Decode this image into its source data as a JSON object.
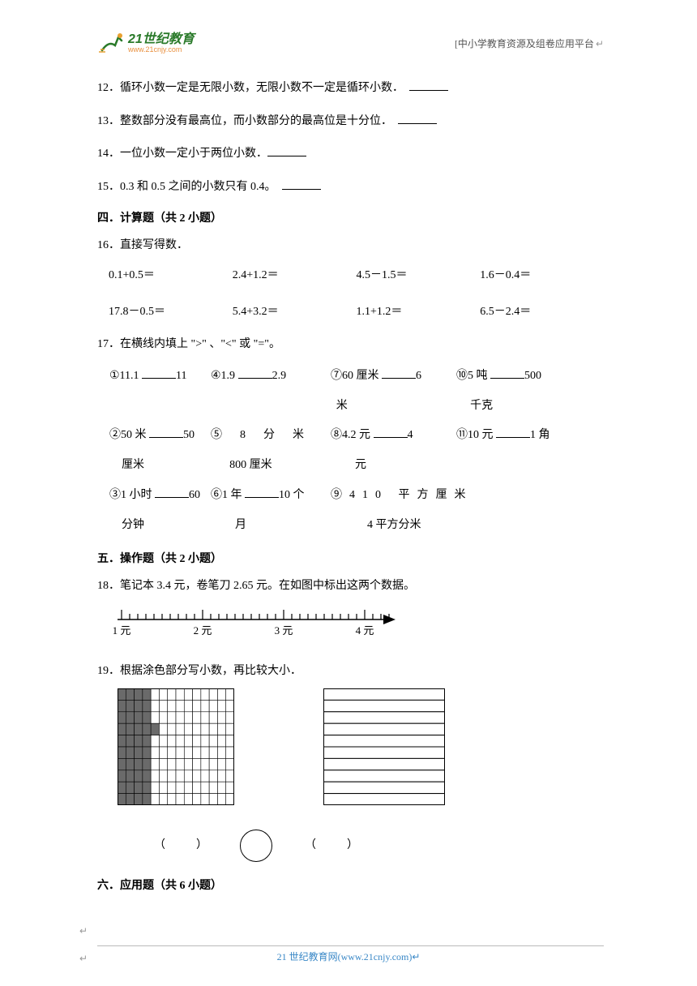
{
  "header": {
    "logo_cn": "21世纪教育",
    "logo_url": "www.21cnjy.com",
    "right": "[中小学教育资源及组卷应用平台"
  },
  "q12": {
    "num": "12．",
    "text": "循环小数一定是无限小数，无限小数不一定是循环小数．"
  },
  "q13": {
    "num": "13．",
    "text": "整数部分没有最高位，而小数部分的最高位是十分位．"
  },
  "q14": {
    "num": "14．",
    "text": "一位小数一定小于两位小数．"
  },
  "q15": {
    "num": "15．",
    "text": "0.3 和 0.5 之间的小数只有 0.4。"
  },
  "sec4": "四．计算题（共 2 小题）",
  "q16": {
    "num": "16．",
    "text": "直接写得数．",
    "cells": [
      "0.1+0.5＝",
      "2.4+1.2＝",
      "4.5－1.5＝",
      "1.6－0.4＝",
      "17.8－0.5＝",
      "5.4+3.2＝",
      "1.1+1.2＝",
      "6.5－2.4＝"
    ]
  },
  "q17": {
    "num": "17．",
    "text": "在横线内填上 \">\" 、\"<\" 或 \"=\"。",
    "row1": {
      "c1": "①11.1",
      "c1t": "11",
      "c2": "④1.9",
      "c2t": "2.9",
      "c3": "⑦60 厘米",
      "c3t": "6",
      "c4": "⑩5 吨",
      "c4t": "500"
    },
    "row1b": {
      "c3": "米",
      "c4": "千克"
    },
    "row2": {
      "c1": "②50 米",
      "c1t": "50",
      "c2": "⑤　8　分　米",
      "c3": "⑧4.2 元",
      "c3t": "4",
      "c4": "⑪10 元",
      "c4t": "1 角"
    },
    "row2b": {
      "c1": "厘米",
      "c2": "800 厘米",
      "c3": "元"
    },
    "row3": {
      "c1": "③1 小时",
      "c1t": "60",
      "c2": "⑥1 年",
      "c2t": "10 个",
      "c3": "⑨410 平方厘米"
    },
    "row3b": {
      "c1": "分钟",
      "c2": "月",
      "c3": "4 平方分米"
    }
  },
  "sec5": "五．操作题（共 2 小题）",
  "q18": {
    "num": "18．",
    "text": "笔记本 3.4 元，卷笔刀 2.65 元。在如图中标出这两个数据。",
    "labels": [
      "1 元",
      "2 元",
      "3 元",
      "4 元"
    ]
  },
  "q19": {
    "num": "19．",
    "text": "根据涂色部分写小数，再比较大小．",
    "grid_fill_cols": [
      4,
      4,
      4,
      5,
      4,
      4,
      4,
      4,
      4,
      4
    ],
    "grid_total": 14,
    "rows_count": 10
  },
  "sec6": "六．应用题（共 6 小题）",
  "footer": {
    "text": "21 世纪教育网",
    "site": "(www.21cnjy.com)"
  }
}
